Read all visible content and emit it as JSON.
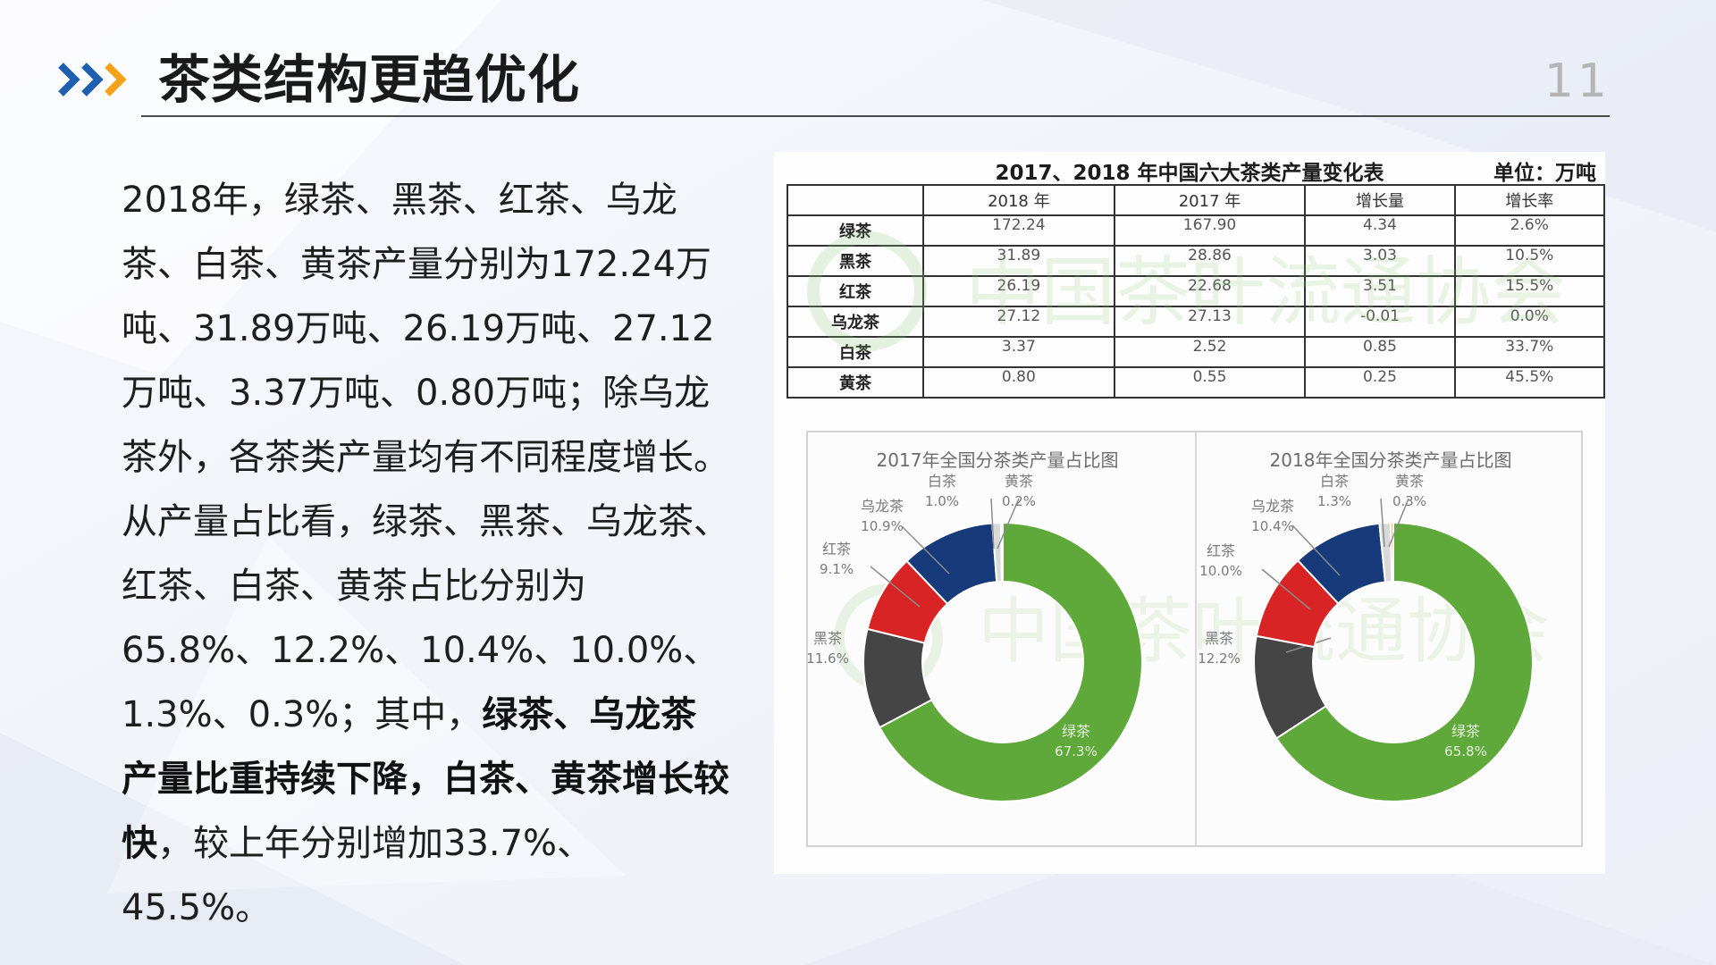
{
  "slide": {
    "title": "茶类结构更趋优化",
    "page_number": "11",
    "paragraph": {
      "part1": "2018年，绿茶、黑茶、红茶、乌龙茶、白茶、黄茶产量分别为172.24万吨、31.89万吨、26.19万吨、27.12万吨、3.37万吨、0.80万吨；除乌龙茶外，各茶类产量均有不同程度增长。从产量占比看，绿茶、黑茶、乌龙茶、红茶、白茶、黄茶占比分别为65.8%、12.2%、10.4%、10.0%、1.3%、0.3%；其中，",
      "bold1": "绿茶、乌龙茶产量比重持续下降，白茶、黄茶增长较快",
      "part2": "，较上年分别增加33.7%、45.5%。"
    }
  },
  "colors": {
    "chevron_blue": "#1f5fb0",
    "chevron_orange": "#f5a21b",
    "green": "#5fa83a",
    "dark_gray": "#454545",
    "red": "#d82424",
    "navy": "#173a7a",
    "light_gray": "#d9d9d9",
    "yellow": "#e6c42a"
  },
  "chart_data": [
    {
      "type": "table",
      "title": "2017、2018 年中国六大茶类产量变化表",
      "unit": "单位：万吨",
      "columns": [
        "",
        "2018 年",
        "2017 年",
        "增长量",
        "增长率"
      ],
      "rows": [
        [
          "绿茶",
          "172.24",
          "167.90",
          "4.34",
          "2.6%"
        ],
        [
          "黑茶",
          "31.89",
          "28.86",
          "3.03",
          "10.5%"
        ],
        [
          "红茶",
          "26.19",
          "22.68",
          "3.51",
          "15.5%"
        ],
        [
          "乌龙茶",
          "27.12",
          "27.13",
          "-0.01",
          "0.0%"
        ],
        [
          "白茶",
          "3.37",
          "2.52",
          "0.85",
          "33.7%"
        ],
        [
          "黄茶",
          "0.80",
          "0.55",
          "0.25",
          "45.5%"
        ]
      ],
      "watermark": "中国茶叶流通协会"
    },
    {
      "type": "pie",
      "title": "2017年全国分茶类产量占比图",
      "slices": [
        {
          "label": "绿茶",
          "value": 67.3,
          "display": "67.3%",
          "color": "#5fa83a"
        },
        {
          "label": "黑茶",
          "value": 11.6,
          "display": "11.6%",
          "color": "#454545"
        },
        {
          "label": "红茶",
          "value": 9.1,
          "display": "9.1%",
          "color": "#d82424"
        },
        {
          "label": "乌龙茶",
          "value": 10.9,
          "display": "10.9%",
          "color": "#173a7a"
        },
        {
          "label": "白茶",
          "value": 1.0,
          "display": "1.0%",
          "color": "#d9d9d9"
        },
        {
          "label": "黄茶",
          "value": 0.2,
          "display": "0.2%",
          "color": "#e6c42a"
        }
      ]
    },
    {
      "type": "pie",
      "title": "2018年全国分茶类产量占比图",
      "slices": [
        {
          "label": "绿茶",
          "value": 65.8,
          "display": "65.8%",
          "color": "#5fa83a"
        },
        {
          "label": "黑茶",
          "value": 12.2,
          "display": "12.2%",
          "color": "#454545"
        },
        {
          "label": "红茶",
          "value": 10.0,
          "display": "10.0%",
          "color": "#d82424"
        },
        {
          "label": "乌龙茶",
          "value": 10.4,
          "display": "10.4%",
          "color": "#173a7a"
        },
        {
          "label": "白茶",
          "value": 1.3,
          "display": "1.3%",
          "color": "#d9d9d9"
        },
        {
          "label": "黄茶",
          "value": 0.3,
          "display": "0.3%",
          "color": "#e6c42a"
        }
      ]
    }
  ]
}
